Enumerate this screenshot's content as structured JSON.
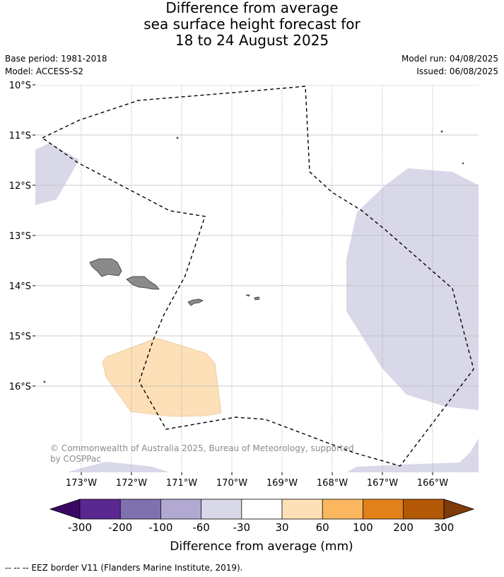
{
  "title": {
    "line1": "Difference from average",
    "line2": "sea surface height forecast for",
    "line3": "18 to 24 August 2025"
  },
  "info": {
    "base_period": "Base period: 1981-2018",
    "model": "Model: ACCESS-S2",
    "model_run": "Model run: 04/08/2025",
    "issued": "Issued: 06/08/2025"
  },
  "map": {
    "lat_labels": [
      "10°S",
      "11°S",
      "12°S",
      "13°S",
      "14°S",
      "15°S",
      "16°S"
    ],
    "lon_labels": [
      "173°W",
      "172°W",
      "171°W",
      "170°W",
      "169°W",
      "168°W",
      "167°W",
      "166°W"
    ],
    "copyright": "© Commonwealth of Australia 2025, Bureau of Meteorology, supported",
    "copyright_line2": "by COSPPac",
    "colors": {
      "land": "#8a8a8a",
      "minus30_60": "#d8d8e9",
      "plus30_60": "#fde0b7"
    }
  },
  "colorbar": {
    "title": "Difference from average (mm)",
    "ticks": [
      "-300",
      "-200",
      "-100",
      "-60",
      "-30",
      "30",
      "60",
      "100",
      "200",
      "300"
    ],
    "colors": [
      "#3b0764",
      "#5a2891",
      "#7f71ae",
      "#b2a9d2",
      "#d8d8e9",
      "#ffffff",
      "#fde0b7",
      "#fab75f",
      "#e0811a",
      "#b35806",
      "#7f3b08"
    ]
  },
  "footnote": "--  --  -- EEZ border V11 (Flanders Marine Institute, 2019)."
}
